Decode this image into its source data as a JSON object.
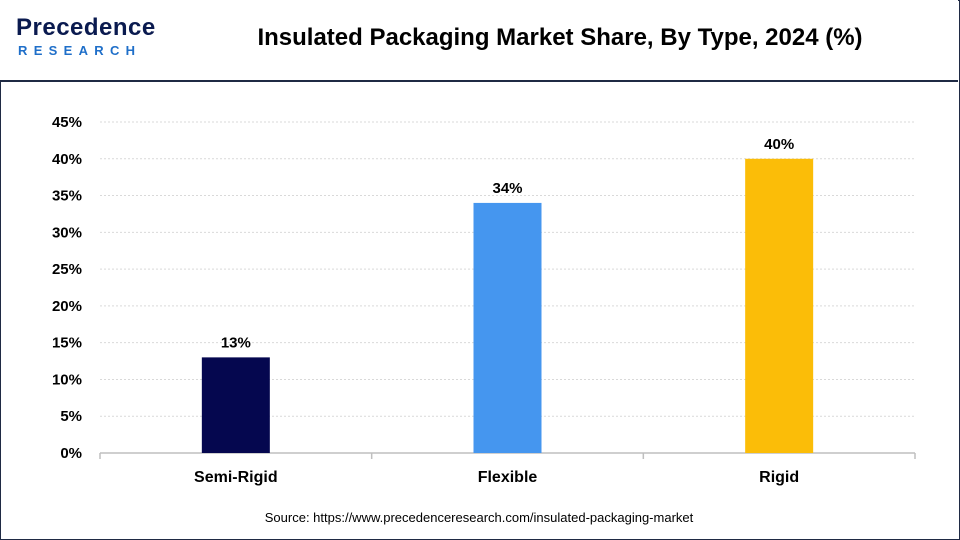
{
  "header": {
    "logo_top": "Precedence",
    "logo_bottom": "RESEARCH",
    "title": "Insulated Packaging Market Share, By Type, 2024 (%)"
  },
  "footer": {
    "source": "Source: https://www.precedenceresearch.com/insulated-packaging-market"
  },
  "chart_data": {
    "type": "bar",
    "title": "Insulated Packaging Market Share, By Type, 2024 (%)",
    "xlabel": "",
    "ylabel": "",
    "categories": [
      "Semi-Rigid",
      "Flexible",
      "Rigid"
    ],
    "values": [
      13,
      34,
      40
    ],
    "value_labels": [
      "13%",
      "34%",
      "40%"
    ],
    "colors": [
      "#05074f",
      "#4596ef",
      "#fbbd08"
    ],
    "ylim": [
      0,
      45
    ],
    "yticks": [
      0,
      5,
      10,
      15,
      20,
      25,
      30,
      35,
      40,
      45
    ],
    "ytick_labels": [
      "0%",
      "5%",
      "10%",
      "15%",
      "20%",
      "25%",
      "30%",
      "35%",
      "40%",
      "45%"
    ],
    "grid": true,
    "legend": "none"
  }
}
